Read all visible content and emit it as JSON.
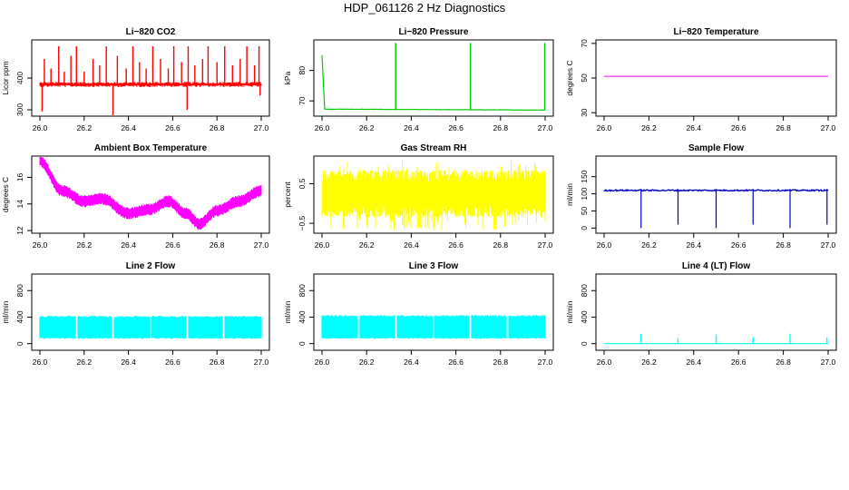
{
  "title": "HDP_061126  2 Hz Diagnostics",
  "chart_data": [
    {
      "type": "line",
      "title": "Li−820 CO2",
      "ylabel": "Licor ppm",
      "xlim": [
        26.0,
        27.0
      ],
      "ylim": [
        280,
        520
      ],
      "xticks": [
        "26.0",
        "26.2",
        "26.4",
        "26.6",
        "26.8",
        "27.0"
      ],
      "yticks": [
        {
          "v": 300,
          "label": "300"
        },
        {
          "v": 400,
          "label": "400"
        }
      ],
      "color": "#ff0000",
      "baseline": 380,
      "noise": 6,
      "spikes": [
        [
          26.01,
          295
        ],
        [
          26.02,
          460
        ],
        [
          26.05,
          430
        ],
        [
          26.085,
          500
        ],
        [
          26.11,
          420
        ],
        [
          26.14,
          470
        ],
        [
          26.165,
          500
        ],
        [
          26.2,
          420
        ],
        [
          26.24,
          460
        ],
        [
          26.27,
          440
        ],
        [
          26.3,
          500
        ],
        [
          26.33,
          280
        ],
        [
          26.35,
          470
        ],
        [
          26.39,
          430
        ],
        [
          26.42,
          500
        ],
        [
          26.45,
          450
        ],
        [
          26.48,
          430
        ],
        [
          26.51,
          500
        ],
        [
          26.545,
          460
        ],
        [
          26.58,
          430
        ],
        [
          26.605,
          500
        ],
        [
          26.64,
          450
        ],
        [
          26.665,
          300
        ],
        [
          26.67,
          500
        ],
        [
          26.7,
          440
        ],
        [
          26.735,
          460
        ],
        [
          26.76,
          500
        ],
        [
          26.8,
          450
        ],
        [
          26.835,
          500
        ],
        [
          26.87,
          440
        ],
        [
          26.905,
          460
        ],
        [
          26.935,
          500
        ],
        [
          26.97,
          440
        ],
        [
          26.99,
          500
        ],
        [
          26.995,
          345
        ]
      ]
    },
    {
      "type": "line",
      "title": "Li−820 Pressure",
      "ylabel": "kPa",
      "xlim": [
        26.0,
        27.0
      ],
      "ylim": [
        65,
        90
      ],
      "xticks": [
        "26.0",
        "26.2",
        "26.4",
        "26.6",
        "26.8",
        "27.0"
      ],
      "yticks": [
        {
          "v": 70,
          "label": "70"
        },
        {
          "v": 80,
          "label": "80"
        }
      ],
      "color": "#00cc00",
      "start": 85,
      "baseline": 67.3,
      "drift": -0.3,
      "noise": 0.1,
      "spikes": [
        [
          26.33,
          89
        ],
        [
          26.665,
          89
        ],
        [
          26.998,
          89
        ]
      ]
    },
    {
      "type": "line",
      "title": "Li−820 Temperature",
      "ylabel": "degrees C",
      "xlim": [
        26.0,
        27.0
      ],
      "ylim": [
        28,
        72
      ],
      "xticks": [
        "26.0",
        "26.2",
        "26.4",
        "26.6",
        "26.8",
        "27.0"
      ],
      "yticks": [
        {
          "v": 30,
          "label": "30"
        },
        {
          "v": 50,
          "label": "50"
        },
        {
          "v": 70,
          "label": "70"
        }
      ],
      "color": "#ff00ff",
      "constant": 51
    },
    {
      "type": "line",
      "title": "Ambient Box Temperature",
      "ylabel": "degrees C",
      "xlim": [
        26.0,
        27.0
      ],
      "ylim": [
        11.8,
        17.6
      ],
      "xticks": [
        "26.0",
        "26.2",
        "26.4",
        "26.6",
        "26.8",
        "27.0"
      ],
      "yticks": [
        {
          "v": 12,
          "label": "12"
        },
        {
          "v": 14,
          "label": "14"
        },
        {
          "v": 16,
          "label": "16"
        }
      ],
      "color": "#ff00ff",
      "band": 0.45,
      "curve": [
        [
          26.0,
          17.2
        ],
        [
          26.1,
          15.0
        ],
        [
          26.2,
          14.2
        ],
        [
          26.28,
          14.4
        ],
        [
          26.4,
          13.3
        ],
        [
          26.5,
          13.6
        ],
        [
          26.58,
          14.2
        ],
        [
          26.66,
          13.3
        ],
        [
          26.72,
          12.5
        ],
        [
          26.8,
          13.5
        ],
        [
          26.9,
          14.2
        ],
        [
          27.0,
          15.0
        ]
      ]
    },
    {
      "type": "line",
      "title": "Gas Stream RH",
      "ylabel": "percent",
      "xlim": [
        26.0,
        27.0
      ],
      "ylim": [
        -0.75,
        1.2
      ],
      "xticks": [
        "26.0",
        "26.2",
        "26.4",
        "26.6",
        "26.8",
        "27.0"
      ],
      "yticks": [
        {
          "v": -0.5,
          "label": "−0.5"
        },
        {
          "v": 0.5,
          "label": "0.5"
        }
      ],
      "color": "#ffff00",
      "center": 0.25,
      "spread": 0.6
    },
    {
      "type": "line",
      "title": "Sample Flow",
      "ylabel": "ml/min",
      "xlim": [
        26.0,
        27.0
      ],
      "ylim": [
        -15,
        210
      ],
      "xticks": [
        "26.0",
        "26.2",
        "26.4",
        "26.6",
        "26.8",
        "27.0"
      ],
      "yticks": [
        {
          "v": 0,
          "label": "0"
        },
        {
          "v": 50,
          "label": "50"
        },
        {
          "v": 100,
          "label": "100"
        },
        {
          "v": 150,
          "label": "150"
        }
      ],
      "color": "#0000cc",
      "baseline": 110,
      "noise": 2,
      "dips": [
        26.165,
        26.33,
        26.5,
        26.665,
        26.83,
        26.995
      ]
    },
    {
      "type": "line",
      "title": "Line 2 Flow",
      "ylabel": "ml/min",
      "xlim": [
        26.0,
        27.0
      ],
      "ylim": [
        -100,
        1050
      ],
      "xticks": [
        "26.0",
        "26.2",
        "26.4",
        "26.6",
        "26.8",
        "27.0"
      ],
      "yticks": [
        {
          "v": 0,
          "label": "0"
        },
        {
          "v": 400,
          "label": "400"
        },
        {
          "v": 800,
          "label": "800"
        }
      ],
      "color": "#00ffff",
      "low": 80,
      "high": 410,
      "gaps": [
        26.165,
        26.33,
        26.5,
        26.665,
        26.83
      ]
    },
    {
      "type": "line",
      "title": "Line 3 Flow",
      "ylabel": "ml/min",
      "xlim": [
        26.0,
        27.0
      ],
      "ylim": [
        -100,
        1050
      ],
      "xticks": [
        "26.0",
        "26.2",
        "26.4",
        "26.6",
        "26.8",
        "27.0"
      ],
      "yticks": [
        {
          "v": 0,
          "label": "0"
        },
        {
          "v": 400,
          "label": "400"
        },
        {
          "v": 800,
          "label": "800"
        }
      ],
      "color": "#00ffff",
      "low": 80,
      "high": 420,
      "gaps": [
        26.165,
        26.33,
        26.5,
        26.665,
        26.83
      ]
    },
    {
      "type": "line",
      "title": "Line 4 (LT) Flow",
      "ylabel": "ml/min",
      "xlim": [
        26.0,
        27.0
      ],
      "ylim": [
        -100,
        1050
      ],
      "xticks": [
        "26.0",
        "26.2",
        "26.4",
        "26.6",
        "26.8",
        "27.0"
      ],
      "yticks": [
        {
          "v": 0,
          "label": "0"
        },
        {
          "v": 400,
          "label": "400"
        },
        {
          "v": 800,
          "label": "800"
        }
      ],
      "color": "#00ffff",
      "baseline": 0,
      "spikes": [
        [
          26.165,
          150
        ],
        [
          26.33,
          80
        ],
        [
          26.5,
          140
        ],
        [
          26.665,
          100
        ],
        [
          26.83,
          150
        ],
        [
          26.995,
          90
        ]
      ]
    }
  ]
}
